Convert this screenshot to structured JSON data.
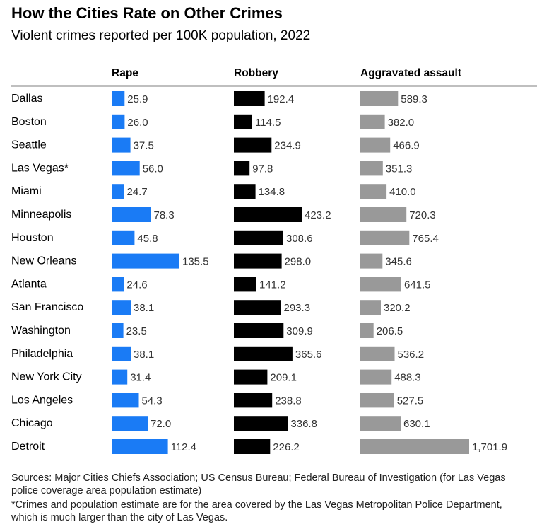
{
  "title": "How the Cities Rate on Other Crimes",
  "subtitle": "Violent crimes reported per 100K population, 2022",
  "chart_data": {
    "type": "bar",
    "orientation": "horizontal",
    "categories": [
      "Dallas",
      "Boston",
      "Seattle",
      "Las Vegas*",
      "Miami",
      "Minneapolis",
      "Houston",
      "New Orleans",
      "Atlanta",
      "San Francisco",
      "Washington",
      "Philadelphia",
      "New York City",
      "Los Angeles",
      "Chicago",
      "Detroit"
    ],
    "series": [
      {
        "name": "Rape",
        "color": "#1a7bf5",
        "values": [
          25.9,
          26.0,
          37.5,
          56.0,
          24.7,
          78.3,
          45.8,
          135.5,
          24.6,
          38.1,
          23.5,
          38.1,
          31.4,
          54.3,
          72.0,
          112.4
        ],
        "labels": [
          "25.9",
          "26.0",
          "37.5",
          "56.0",
          "24.7",
          "78.3",
          "45.8",
          "135.5",
          "24.6",
          "38.1",
          "23.5",
          "38.1",
          "31.4",
          "54.3",
          "72.0",
          "112.4"
        ]
      },
      {
        "name": "Robbery",
        "color": "#000000",
        "values": [
          192.4,
          114.5,
          234.9,
          97.8,
          134.8,
          423.2,
          308.6,
          298.0,
          141.2,
          293.3,
          309.9,
          365.6,
          209.1,
          238.8,
          336.8,
          226.2
        ],
        "labels": [
          "192.4",
          "114.5",
          "234.9",
          "97.8",
          "134.8",
          "423.2",
          "308.6",
          "298.0",
          "141.2",
          "293.3",
          "309.9",
          "365.6",
          "209.1",
          "238.8",
          "336.8",
          "226.2"
        ]
      },
      {
        "name": "Aggravated assault",
        "color": "#999999",
        "values": [
          589.3,
          382.0,
          466.9,
          351.3,
          410.0,
          720.3,
          765.4,
          345.6,
          641.5,
          320.2,
          206.5,
          536.2,
          488.3,
          527.5,
          630.1,
          1701.9
        ],
        "labels": [
          "589.3",
          "382.0",
          "466.9",
          "351.3",
          "410.0",
          "720.3",
          "765.4",
          "345.6",
          "641.5",
          "320.2",
          "206.5",
          "536.2",
          "488.3",
          "527.5",
          "630.1",
          "1,701.9"
        ]
      }
    ]
  },
  "footer": {
    "sources": "Sources: Major Cities Chiefs Association; US Census Bureau; Federal Bureau of Investigation (for Las Vegas police coverage area population estimate)",
    "note": "*Crimes and population estimate are for the area covered by the Las Vegas Metropolitan Police Department, which is much larger than the city of Las Vegas."
  }
}
